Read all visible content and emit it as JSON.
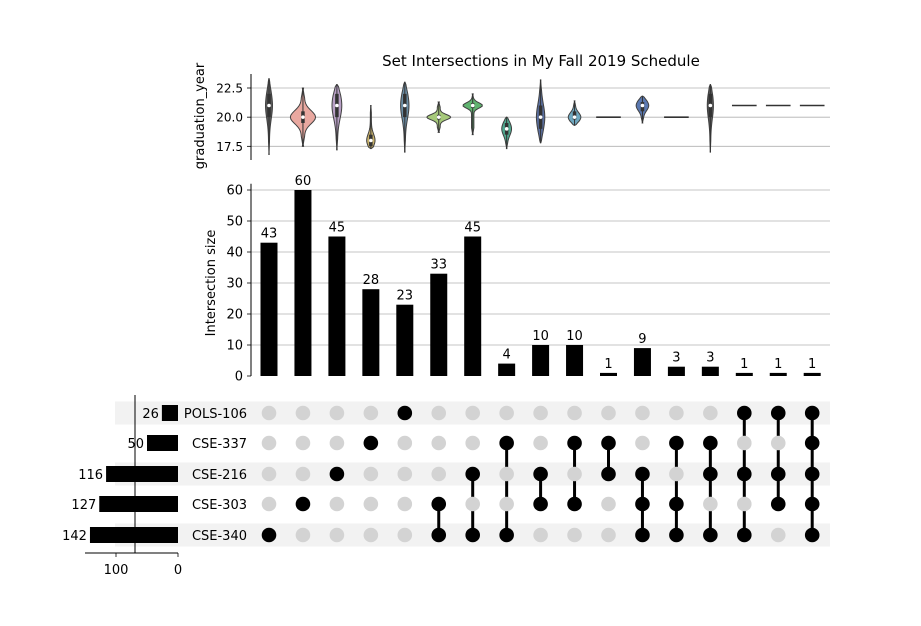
{
  "chart_data": {
    "type": "bar",
    "title": "Set Intersections in My Fall 2019 Schedule",
    "sets": [
      "POLS-106",
      "CSE-337",
      "CSE-216",
      "CSE-303",
      "CSE-340"
    ],
    "set_sizes": [
      26,
      50,
      116,
      127,
      142
    ],
    "set_size_axis": {
      "ticks": [
        100,
        0
      ],
      "tick_labels": [
        "100",
        "0"
      ],
      "range": [
        0,
        150
      ]
    },
    "intersections": [
      {
        "members": [
          "CSE-340"
        ],
        "size": 43,
        "violin": {
          "median": 21,
          "q1": 20,
          "q3": 22,
          "min": 16.8,
          "max": 23.3,
          "width": 0.25,
          "color": "#5a5a5a"
        }
      },
      {
        "members": [
          "CSE-303"
        ],
        "size": 60,
        "violin": {
          "median": 20,
          "q1": 19.5,
          "q3": 20.5,
          "min": 17.5,
          "max": 22.5,
          "width": 0.9,
          "color": "#e9a8a0"
        }
      },
      {
        "members": [
          "CSE-216"
        ],
        "size": 45,
        "violin": {
          "median": 21,
          "q1": 20,
          "q3": 22,
          "min": 17.2,
          "max": 22.8,
          "width": 0.35,
          "color": "#b8a0c6"
        }
      },
      {
        "members": [
          "CSE-337"
        ],
        "size": 28,
        "violin": {
          "median": 18,
          "q1": 17.5,
          "q3": 18.5,
          "min": 17.3,
          "max": 21,
          "width": 0.3,
          "color": "#c9b26b"
        }
      },
      {
        "members": [
          "POLS-106"
        ],
        "size": 23,
        "violin": {
          "median": 21,
          "q1": 20,
          "q3": 22,
          "min": 17,
          "max": 23,
          "width": 0.3,
          "color": "#6b8ea6"
        }
      },
      {
        "members": [
          "CSE-303",
          "CSE-340"
        ],
        "size": 33,
        "violin": {
          "median": 20,
          "q1": 19.8,
          "q3": 20.2,
          "min": 18.7,
          "max": 21.3,
          "width": 0.85,
          "color": "#a6c97a"
        }
      },
      {
        "members": [
          "CSE-216",
          "CSE-340"
        ],
        "size": 45,
        "violin": {
          "median": 21,
          "q1": 20.8,
          "q3": 21.2,
          "min": 18.5,
          "max": 22,
          "width": 0.7,
          "color": "#5fb36f"
        }
      },
      {
        "members": [
          "CSE-337",
          "CSE-340"
        ],
        "size": 4,
        "violin": {
          "median": 19,
          "q1": 18.5,
          "q3": 19.5,
          "min": 17.3,
          "max": 20,
          "width": 0.35,
          "color": "#4fa88f"
        }
      },
      {
        "members": [
          "CSE-216",
          "CSE-303"
        ],
        "size": 10,
        "violin": {
          "median": 20,
          "q1": 19,
          "q3": 21,
          "min": 17.8,
          "max": 23.2,
          "width": 0.3,
          "color": "#5a6fa0"
        }
      },
      {
        "members": [
          "CSE-337",
          "CSE-303"
        ],
        "size": 10,
        "violin": {
          "median": 20,
          "q1": 19.8,
          "q3": 20.5,
          "min": 19.3,
          "max": 21.4,
          "width": 0.45,
          "color": "#6fa8c0"
        }
      },
      {
        "members": [
          "CSE-337",
          "CSE-216"
        ],
        "size": 1,
        "violin": {
          "median": 20,
          "q1": 20,
          "q3": 20,
          "min": 20,
          "max": 20,
          "width": 0.8,
          "color": "#333333"
        }
      },
      {
        "members": [
          "CSE-216",
          "CSE-303",
          "CSE-340"
        ],
        "size": 9,
        "violin": {
          "median": 21,
          "q1": 20.5,
          "q3": 21.3,
          "min": 19.5,
          "max": 21.8,
          "width": 0.45,
          "color": "#5a78b0"
        }
      },
      {
        "members": [
          "CSE-337",
          "CSE-303",
          "CSE-340"
        ],
        "size": 3,
        "violin": {
          "median": 20,
          "q1": 20,
          "q3": 20,
          "min": 20,
          "max": 20,
          "width": 0.8,
          "color": "#333333"
        }
      },
      {
        "members": [
          "CSE-337",
          "CSE-216",
          "CSE-340"
        ],
        "size": 3,
        "violin": {
          "median": 21,
          "q1": 20,
          "q3": 22,
          "min": 17,
          "max": 22.8,
          "width": 0.22,
          "color": "#5a5a5a"
        }
      },
      {
        "members": [
          "POLS-106",
          "CSE-216",
          "CSE-340"
        ],
        "size": 1,
        "violin": {
          "median": 21,
          "q1": 21,
          "q3": 21,
          "min": 21,
          "max": 21,
          "width": 0.8,
          "color": "#333333"
        }
      },
      {
        "members": [
          "POLS-106",
          "CSE-216",
          "CSE-303"
        ],
        "size": 1,
        "violin": {
          "median": 21,
          "q1": 21,
          "q3": 21,
          "min": 21,
          "max": 21,
          "width": 0.8,
          "color": "#333333"
        }
      },
      {
        "members": [
          "POLS-106",
          "CSE-337",
          "CSE-216",
          "CSE-303",
          "CSE-340"
        ],
        "size": 1,
        "violin": {
          "median": 21,
          "q1": 21,
          "q3": 21,
          "min": 21,
          "max": 21,
          "width": 0.8,
          "color": "#333333"
        }
      }
    ],
    "bar_axis": {
      "ylabel": "Intersection size",
      "ylim": [
        0,
        62
      ],
      "ticks": [
        0,
        10,
        20,
        30,
        40,
        50,
        60
      ]
    },
    "violin_axis": {
      "ylabel": "graduation_year",
      "ylim": [
        16.5,
        23.7
      ],
      "ticks": [
        17.5,
        20.0,
        22.5
      ],
      "tick_labels": [
        "17.5",
        "20.0",
        "22.5"
      ]
    },
    "grid": true,
    "colors": {
      "bar": "#000000",
      "active_dot": "#000000",
      "inactive_dot": "#d3d3d3",
      "stripe": "#f2f2f2",
      "grid": "#b0b0b0"
    }
  }
}
